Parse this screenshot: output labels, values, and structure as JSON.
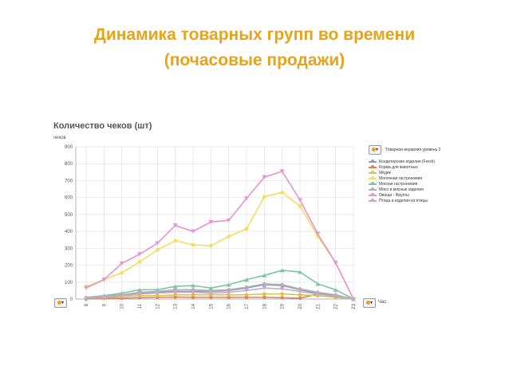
{
  "slide": {
    "title_line1": "Динамика товарных групп во времени",
    "title_line2": "(почасовые продажи)"
  },
  "panel": {
    "title": "Количество чеков (шт)",
    "y_unit": "чеков",
    "x_unit": "Час"
  },
  "legend": {
    "title": "Товарная иерархия уровень 2"
  },
  "chart_data": {
    "type": "line",
    "x": [
      "8",
      "9",
      "10",
      "11",
      "12",
      "13",
      "14",
      "15",
      "16",
      "17",
      "18",
      "19",
      "20",
      "21",
      "22",
      "23"
    ],
    "ylim": [
      0,
      900
    ],
    "yticks": [
      "0",
      "100",
      "200",
      "300",
      "400",
      "500",
      "600",
      "700",
      "800",
      "900"
    ],
    "grid": true,
    "legend_position": "right",
    "series": [
      {
        "name": "Кондитерские изделия (Fresh)",
        "color": "#7f9fc6",
        "values": [
          5,
          15,
          25,
          35,
          40,
          45,
          45,
          45,
          50,
          65,
          85,
          80,
          55,
          35,
          20,
          0
        ]
      },
      {
        "name": "Корма для животных",
        "color": "#e08060",
        "values": [
          0,
          5,
          5,
          8,
          10,
          12,
          10,
          10,
          10,
          10,
          10,
          8,
          5,
          30,
          15,
          0
        ]
      },
      {
        "name": "Мёдик",
        "color": "#d4c44a",
        "values": [
          5,
          10,
          15,
          20,
          20,
          25,
          25,
          25,
          25,
          25,
          30,
          30,
          25,
          20,
          10,
          0
        ]
      },
      {
        "name": "Молочная гастрономия",
        "color": "#f5dd5a",
        "values": [
          75,
          115,
          155,
          220,
          290,
          345,
          320,
          315,
          370,
          415,
          605,
          630,
          550,
          370,
          215,
          0
        ]
      },
      {
        "name": "Мясная гастрономия",
        "color": "#7cc7a2",
        "values": [
          10,
          20,
          35,
          55,
          55,
          75,
          80,
          65,
          85,
          115,
          140,
          170,
          160,
          90,
          55,
          0
        ]
      },
      {
        "name": "Мясо и мясные изделия",
        "color": "#b0b0b0",
        "values": [
          5,
          15,
          25,
          40,
          45,
          55,
          55,
          50,
          55,
          70,
          90,
          85,
          60,
          40,
          25,
          0
        ]
      },
      {
        "name": "Овощи - Фрукты",
        "color": "#e394d8",
        "values": [
          65,
          115,
          210,
          265,
          330,
          435,
          400,
          455,
          465,
          595,
          720,
          755,
          585,
          385,
          215,
          0
        ]
      },
      {
        "name": "Птица и изделия из птицы",
        "color": "#c8a8c8",
        "values": [
          5,
          10,
          20,
          30,
          35,
          40,
          40,
          35,
          40,
          50,
          65,
          60,
          45,
          30,
          15,
          0
        ]
      }
    ]
  }
}
